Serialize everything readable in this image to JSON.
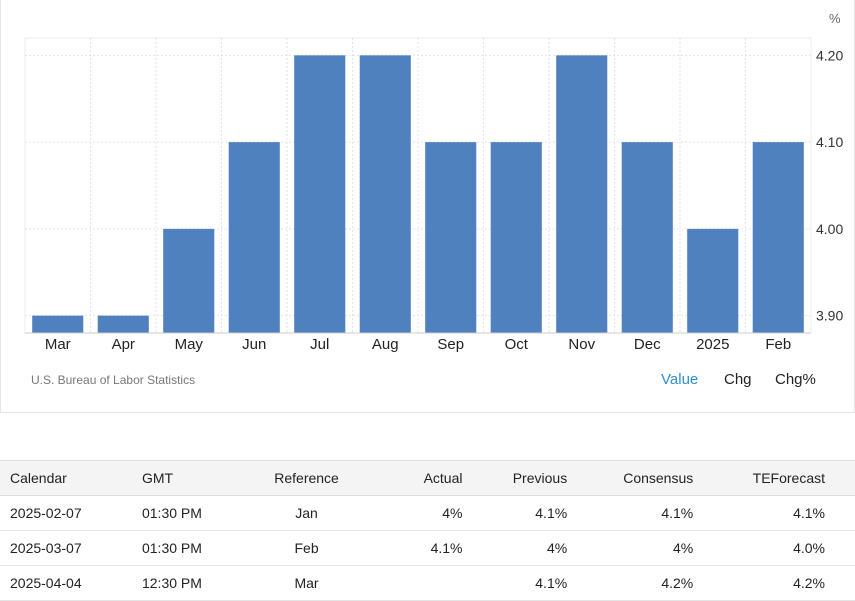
{
  "chart_data": {
    "type": "bar",
    "categories": [
      "Mar",
      "Apr",
      "May",
      "Jun",
      "Jul",
      "Aug",
      "Sep",
      "Oct",
      "Nov",
      "Dec",
      "2025",
      "Feb"
    ],
    "values": [
      3.9,
      3.9,
      4.0,
      4.1,
      4.2,
      4.2,
      4.1,
      4.1,
      4.2,
      4.1,
      4.0,
      4.1
    ],
    "unit": "%",
    "yticks": [
      "4.20",
      "4.10",
      "4.00",
      "3.90"
    ],
    "ytick_values": [
      4.2,
      4.1,
      4.0,
      3.9
    ],
    "ylim": [
      3.88,
      4.22
    ],
    "bar_color": "#4e81bd",
    "grid": true,
    "y_axis_side": "right",
    "source": "U.S. Bureau of Labor Statistics"
  },
  "toggles": [
    "Value",
    "Chg",
    "Chg%"
  ],
  "active_toggle": "Value",
  "table": {
    "headers": [
      "Calendar",
      "GMT",
      "Reference",
      "Actual",
      "Previous",
      "Consensus",
      "TEForecast"
    ],
    "rows": [
      [
        "2025-02-07",
        "01:30 PM",
        "Jan",
        "4%",
        "4.1%",
        "4.1%",
        "4.1%"
      ],
      [
        "2025-03-07",
        "01:30 PM",
        "Feb",
        "4.1%",
        "4%",
        "4%",
        "4.0%"
      ],
      [
        "2025-04-04",
        "12:30 PM",
        "Mar",
        "",
        "4.1%",
        "4.2%",
        "4.2%"
      ]
    ]
  }
}
